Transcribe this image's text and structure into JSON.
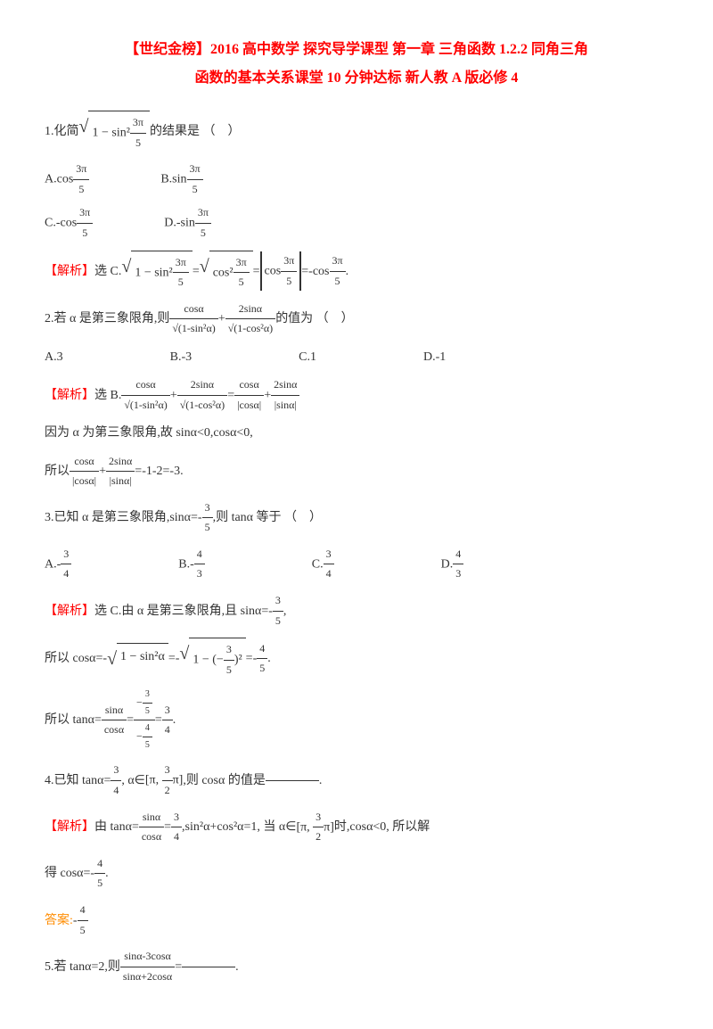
{
  "title_line1": "【世纪金榜】2016 高中数学 探究导学课型 第一章 三角函数 1.2.2 同角三角",
  "title_line2": "函数的基本关系课堂 10 分钟达标 新人教 A 版必修 4",
  "q1": {
    "stem": "1.化简",
    "tail": "的结果是 （　）",
    "optA_pre": "A.cos",
    "optB_pre": "B.sin",
    "optC_pre": "C.-cos",
    "optD_pre": "D.-sin",
    "frac_num": "3π",
    "frac_den": "5"
  },
  "analysis_label": "【解析】",
  "q1_ans": "选 C.",
  "q2": {
    "stem": "2.若 α 是第三象限角,则",
    "tail": "的值为 （　）",
    "optA": "A.3",
    "optB": "B.-3",
    "optC": "C.1",
    "optD": "D.-1",
    "ans": "选 B.",
    "explain1": "因为 α 为第三象限角,故 sinα<0,cosα<0,",
    "explain2_pre": "所以",
    "explain2_post": "=-1-2=-3."
  },
  "q3": {
    "stem_pre": "3.已知 α 是第三象限角,sinα=-",
    "stem_post": ",则 tanα 等于 （　）",
    "optA_pre": "A.-",
    "optB_pre": "B.-",
    "optC_pre": "C.",
    "optD_pre": "D.",
    "ans_pre": "选 C.由 α 是第三象限角,且 sinα=-",
    "step1_pre": "所以 cosα=-",
    "step1_mid": "=-",
    "step1_post": "=-",
    "step2_pre": "所以 tanα=",
    "step2_eq": "="
  },
  "q4": {
    "stem_pre": "4.已知 tanα=",
    "stem_mid": ", α∈",
    "stem_post": ",则 cosα 的值是",
    "ans_pre": "由 tanα=",
    "ans_mid": ",sin²α+cos²α=1, 当 α∈",
    "ans_post": "时,cosα<0, 所以解",
    "result_pre": "得 cosα=-",
    "answer_label": "答案:",
    "answer_pre": "-"
  },
  "q5": {
    "stem_pre": "5.若 tanα=2,则",
    "stem_post": "="
  },
  "fracs": {
    "three_five": {
      "n": "3",
      "d": "5"
    },
    "three_four": {
      "n": "3",
      "d": "4"
    },
    "four_three": {
      "n": "4",
      "d": "3"
    },
    "four_five": {
      "n": "4",
      "d": "5"
    },
    "three_two": {
      "n": "3",
      "d": "2"
    },
    "cosa": "cosα",
    "two_sina": "2sinα",
    "sina": "sinα",
    "sqrt_1_sin2": "√(1-sin²α)",
    "sqrt_1_cos2": "√(1-cos²α)",
    "abs_cosa": "|cosα|",
    "abs_sina": "|sinα|",
    "sina_3cosa": "sinα-3cosα",
    "sina_2cosa": "sinα+2cosα"
  }
}
